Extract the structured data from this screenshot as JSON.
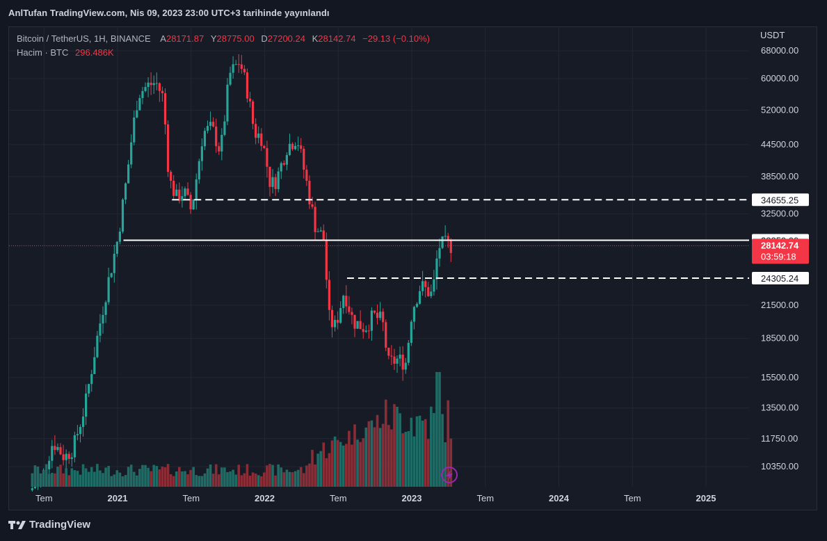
{
  "header": {
    "published_text": "AnlTufan TradingView.com, Nis 09, 2023 23:00 UTC+3 tarihinde yayınlandı"
  },
  "legend": {
    "symbol": "Bitcoin / TetherUS, 1H, BINANCE",
    "o_label": "A",
    "o_value": "28171.87",
    "h_label": "Y",
    "h_value": "28775.00",
    "l_label": "D",
    "l_value": "27200.24",
    "c_label": "K",
    "c_value": "28142.74",
    "change": "−29.13 (−0.10%)",
    "volume_label": "Hacim · BTC",
    "volume_value": "296.486K"
  },
  "footer": {
    "brand": "TradingView",
    "logo_icon": "tradingview-logo-icon"
  },
  "colors": {
    "background": "#131722",
    "up": "#26a69a",
    "down": "#f23645",
    "up_volume": "#1f6b65",
    "down_volume": "#8a2d36",
    "grid": "#232733",
    "axis_text": "#d1d4dc"
  },
  "chart_data": {
    "type": "candlestick",
    "price_axis_unit": "USDT",
    "y_scale": "log",
    "ylim": [
      9600,
      72000
    ],
    "y_ticks": [
      "68000.00",
      "60000.00",
      "52000.00",
      "44500.00",
      "38500.00",
      "32500.00",
      "21500.00",
      "18500.00",
      "15500.00",
      "13500.00",
      "11750.00",
      "10350.00"
    ],
    "x_ticks": [
      "Tem",
      "2021",
      "Tem",
      "2022",
      "Tem",
      "2023",
      "Tem",
      "2024",
      "Tem",
      "2025"
    ],
    "current_price": {
      "value": 28142.74,
      "label": "28142.74",
      "countdown": "03:59:18"
    },
    "horizontal_lines": [
      {
        "value": 34655.25,
        "label": "34655.25",
        "style": "dashed"
      },
      {
        "value": 28850.0,
        "label": "28850.00",
        "style": "solid"
      },
      {
        "value": 24305.24,
        "label": "24305.24",
        "style": "dashed"
      }
    ],
    "price_path": [
      [
        2020.42,
        9300
      ],
      [
        2020.5,
        9700
      ],
      [
        2020.58,
        11600
      ],
      [
        2020.66,
        10800
      ],
      [
        2020.72,
        11300
      ],
      [
        2020.8,
        13700
      ],
      [
        2020.88,
        18500
      ],
      [
        2020.95,
        23500
      ],
      [
        2021.02,
        29000
      ],
      [
        2021.08,
        38000
      ],
      [
        2021.12,
        47000
      ],
      [
        2021.16,
        56000
      ],
      [
        2021.22,
        58000
      ],
      [
        2021.28,
        59000
      ],
      [
        2021.33,
        55000
      ],
      [
        2021.37,
        38000
      ],
      [
        2021.42,
        35000
      ],
      [
        2021.47,
        36000
      ],
      [
        2021.52,
        33000
      ],
      [
        2021.56,
        39000
      ],
      [
        2021.6,
        47000
      ],
      [
        2021.66,
        48000
      ],
      [
        2021.72,
        43000
      ],
      [
        2021.78,
        61000
      ],
      [
        2021.85,
        65000
      ],
      [
        2021.9,
        57000
      ],
      [
        2021.95,
        47000
      ],
      [
        2022.0,
        46000
      ],
      [
        2022.06,
        37000
      ],
      [
        2022.1,
        38000
      ],
      [
        2022.17,
        44000
      ],
      [
        2022.24,
        46000
      ],
      [
        2022.3,
        38000
      ],
      [
        2022.36,
        31000
      ],
      [
        2022.42,
        29000
      ],
      [
        2022.46,
        20000
      ],
      [
        2022.5,
        19500
      ],
      [
        2022.56,
        23000
      ],
      [
        2022.62,
        20000
      ],
      [
        2022.7,
        19400
      ],
      [
        2022.76,
        20500
      ],
      [
        2022.82,
        20000
      ],
      [
        2022.86,
        16500
      ],
      [
        2022.92,
        16800
      ],
      [
        2022.98,
        16600
      ],
      [
        2023.02,
        21000
      ],
      [
        2023.08,
        23500
      ],
      [
        2023.12,
        23000
      ],
      [
        2023.16,
        22500
      ],
      [
        2023.2,
        28000
      ],
      [
        2023.24,
        28400
      ],
      [
        2023.27,
        28142
      ]
    ],
    "volume_profile": "low in 2020-2021, rising through 2022, peaks near 2023.2"
  }
}
